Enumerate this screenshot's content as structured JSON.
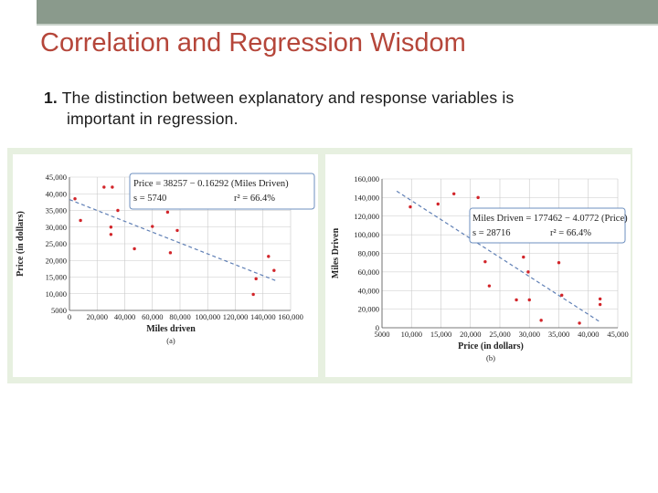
{
  "slide": {
    "title": "Correlation and Regression Wisdom",
    "bullet_number": "1.",
    "bullet_line1": "The distinction between explanatory and response variables is",
    "bullet_line2": "important in regression."
  },
  "colors": {
    "title": "#b5463a",
    "points": "#d2252a",
    "regression_line": "#5f7fb5",
    "figure_bg": "#e7f0e0"
  },
  "chart_data": [
    {
      "type": "scatter",
      "panel_label": "(a)",
      "xlabel": "Miles driven",
      "ylabel": "Price (in dollars)",
      "xlim": [
        0,
        160000
      ],
      "ylim": [
        5000,
        45000
      ],
      "x_ticks": [
        0,
        20000,
        40000,
        60000,
        80000,
        100000,
        120000,
        140000,
        160000
      ],
      "x_tick_labels": [
        "0",
        "20,000",
        "40,000",
        "60,000",
        "80,000",
        "100,000",
        "120,000",
        "140,000",
        "160,000"
      ],
      "y_ticks": [
        5000,
        10000,
        15000,
        20000,
        25000,
        30000,
        35000,
        40000,
        45000
      ],
      "y_tick_labels": [
        "5000",
        "10,000",
        "15,000",
        "20,000",
        "25,000",
        "30,000",
        "35,000",
        "40,000",
        "45,000"
      ],
      "grid": true,
      "points": [
        {
          "x": 4000,
          "y": 38500
        },
        {
          "x": 8000,
          "y": 32000
        },
        {
          "x": 25000,
          "y": 42000
        },
        {
          "x": 31000,
          "y": 42000
        },
        {
          "x": 30000,
          "y": 30000
        },
        {
          "x": 30000,
          "y": 27800
        },
        {
          "x": 35000,
          "y": 35000
        },
        {
          "x": 47000,
          "y": 23500
        },
        {
          "x": 60000,
          "y": 30200
        },
        {
          "x": 71000,
          "y": 34500
        },
        {
          "x": 73000,
          "y": 22300
        },
        {
          "x": 78000,
          "y": 29000
        },
        {
          "x": 133000,
          "y": 9800
        },
        {
          "x": 135000,
          "y": 14500
        },
        {
          "x": 144000,
          "y": 21200
        },
        {
          "x": 148000,
          "y": 17000
        }
      ],
      "regression": {
        "intercept": 38257,
        "slope": -0.16292
      },
      "equation_line1": "Price = 38257 − 0.16292 (Miles Driven)",
      "equation_s": "s = 5740",
      "equation_r2": "r² = 66.4%"
    },
    {
      "type": "scatter",
      "panel_label": "(b)",
      "xlabel": "Price (in dollars)",
      "ylabel": "Miles Driven",
      "xlim": [
        5000,
        45000
      ],
      "ylim": [
        0,
        160000
      ],
      "x_ticks": [
        5000,
        10000,
        15000,
        20000,
        25000,
        30000,
        35000,
        40000,
        45000
      ],
      "x_tick_labels": [
        "5000",
        "10,000",
        "15,000",
        "20,000",
        "25,000",
        "30,000",
        "35,000",
        "40,000",
        "45,000"
      ],
      "y_ticks": [
        0,
        20000,
        40000,
        60000,
        80000,
        100000,
        120000,
        140000,
        160000
      ],
      "y_tick_labels": [
        "0",
        "20,000",
        "40,000",
        "60,000",
        "80,000",
        "100,000",
        "120,000",
        "140,000",
        "160,000"
      ],
      "grid": true,
      "points": [
        {
          "x": 9800,
          "y": 130000
        },
        {
          "x": 14500,
          "y": 133000
        },
        {
          "x": 17200,
          "y": 144000
        },
        {
          "x": 21300,
          "y": 140000
        },
        {
          "x": 22500,
          "y": 71000
        },
        {
          "x": 23200,
          "y": 45000
        },
        {
          "x": 27800,
          "y": 30000
        },
        {
          "x": 29000,
          "y": 76000
        },
        {
          "x": 29800,
          "y": 60000
        },
        {
          "x": 30000,
          "y": 30000
        },
        {
          "x": 32000,
          "y": 8000
        },
        {
          "x": 35000,
          "y": 70000
        },
        {
          "x": 35500,
          "y": 35000
        },
        {
          "x": 38500,
          "y": 5000
        },
        {
          "x": 42000,
          "y": 31000
        },
        {
          "x": 42000,
          "y": 25000
        }
      ],
      "regression": {
        "intercept": 177462,
        "slope": -4.0772
      },
      "equation_line1": "Miles Driven = 177462 − 4.0772 (Price)",
      "equation_s": "s = 28716",
      "equation_r2": "r² = 66.4%"
    }
  ]
}
